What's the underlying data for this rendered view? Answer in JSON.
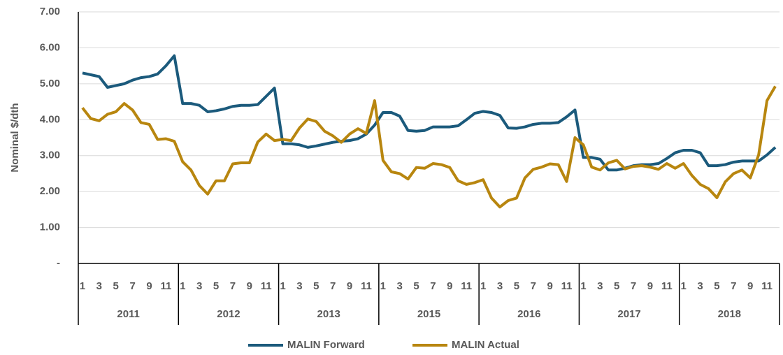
{
  "chart_data": {
    "type": "line",
    "y_label": "Nominal $/dth",
    "categories": [
      "1",
      null,
      "3",
      null,
      "5",
      null,
      "7",
      null,
      "9",
      null,
      "11",
      null,
      "1",
      null,
      "3",
      null,
      "5",
      null,
      "7",
      null,
      "9",
      null,
      "11",
      null,
      "1",
      null,
      "3",
      null,
      "5",
      null,
      "7",
      null,
      "9",
      null,
      "11",
      null,
      "1",
      null,
      "3",
      null,
      "5",
      null,
      "7",
      null,
      "9",
      null,
      "11",
      null,
      "1",
      null,
      "3",
      null,
      "5",
      null,
      "7",
      null,
      "9",
      null,
      "11",
      null,
      "1",
      null,
      "3",
      null,
      "5",
      null,
      "7",
      null,
      "9",
      null,
      "11",
      null,
      "1",
      null,
      "3",
      null,
      "5",
      null,
      "7",
      null,
      "9",
      null,
      "11",
      null
    ],
    "year_groups": [
      "2011",
      "2012",
      "2013",
      "2015",
      "2016",
      "2017",
      "2018"
    ],
    "series": [
      {
        "name": "MALIN Forward",
        "color": "#1b5a7c",
        "values": [
          5.3,
          5.25,
          5.2,
          4.9,
          4.95,
          5.0,
          5.1,
          5.17,
          5.2,
          5.27,
          5.5,
          5.78,
          4.45,
          4.45,
          4.4,
          4.22,
          4.25,
          4.3,
          4.37,
          4.4,
          4.4,
          4.42,
          4.65,
          4.88,
          3.33,
          3.33,
          3.3,
          3.23,
          3.27,
          3.32,
          3.37,
          3.4,
          3.42,
          3.47,
          3.6,
          3.85,
          4.2,
          4.2,
          4.1,
          3.7,
          3.68,
          3.7,
          3.8,
          3.8,
          3.8,
          3.83,
          4.0,
          4.18,
          4.23,
          4.2,
          4.12,
          3.77,
          3.76,
          3.8,
          3.87,
          3.9,
          3.9,
          3.92,
          4.08,
          4.27,
          2.95,
          2.95,
          2.9,
          2.6,
          2.6,
          2.65,
          2.72,
          2.75,
          2.75,
          2.78,
          2.92,
          3.08,
          3.15,
          3.15,
          3.08,
          2.72,
          2.72,
          2.75,
          2.82,
          2.85,
          2.85,
          2.85,
          3.02,
          3.23
        ]
      },
      {
        "name": "MALIN Actual",
        "color": "#b8860f",
        "values": [
          4.33,
          4.03,
          3.97,
          4.15,
          4.22,
          4.45,
          4.27,
          3.92,
          3.87,
          3.45,
          3.47,
          3.4,
          2.83,
          2.6,
          2.17,
          1.93,
          2.3,
          2.3,
          2.77,
          2.8,
          2.8,
          3.38,
          3.6,
          3.42,
          3.45,
          3.42,
          3.77,
          4.02,
          3.95,
          3.68,
          3.55,
          3.37,
          3.6,
          3.75,
          3.62,
          4.53,
          2.87,
          2.55,
          2.5,
          2.35,
          2.67,
          2.65,
          2.78,
          2.75,
          2.67,
          2.3,
          2.2,
          2.25,
          2.33,
          1.82,
          1.57,
          1.75,
          1.82,
          2.38,
          2.62,
          2.68,
          2.77,
          2.75,
          2.28,
          3.5,
          3.3,
          2.68,
          2.6,
          2.8,
          2.87,
          2.63,
          2.7,
          2.72,
          2.68,
          2.62,
          2.78,
          2.65,
          2.78,
          2.45,
          2.2,
          2.08,
          1.83,
          2.27,
          2.5,
          2.6,
          2.38,
          3.02,
          4.53,
          4.93
        ]
      }
    ],
    "ylim": [
      0,
      7
    ],
    "yticks": [
      {
        "value": 0,
        "label": "-"
      },
      {
        "value": 1,
        "label": "1.00"
      },
      {
        "value": 2,
        "label": "2.00"
      },
      {
        "value": 3,
        "label": "3.00"
      },
      {
        "value": 4,
        "label": "4.00"
      },
      {
        "value": 5,
        "label": "5.00"
      },
      {
        "value": 6,
        "label": "6.00"
      },
      {
        "value": 7,
        "label": "7.00"
      }
    ],
    "grid": true,
    "legend": "bottom"
  }
}
